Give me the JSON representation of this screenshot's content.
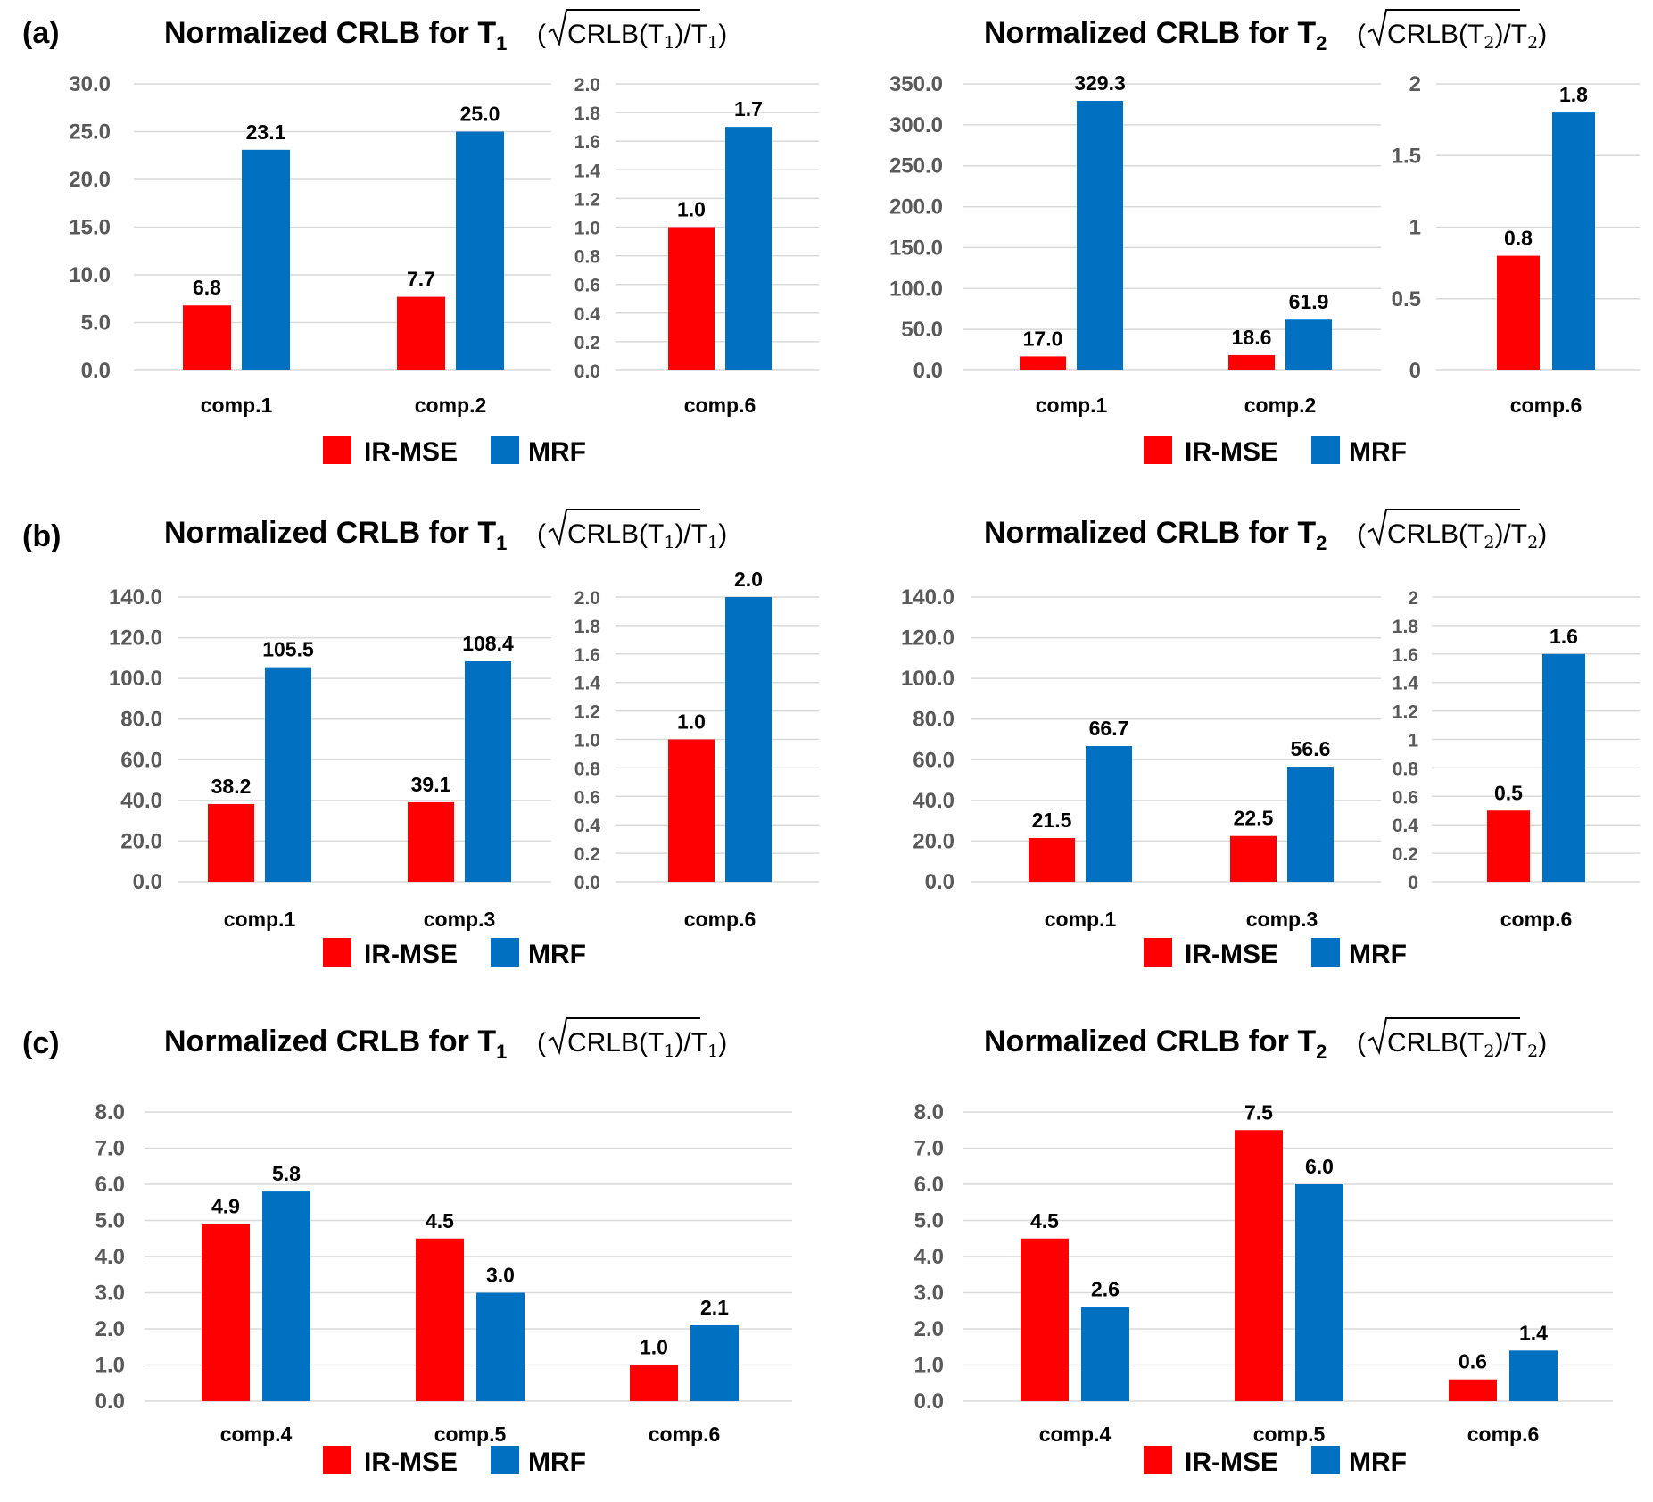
{
  "colors": {
    "ir_mse": "#ff0000",
    "mrf": "#0070c0",
    "grid": "#d9d9d9",
    "tick_text": "#595959"
  },
  "legend": {
    "ir_mse": "IR-MSE",
    "mrf": "MRF"
  },
  "titles": {
    "t1": {
      "main": "Normalized CRLB for T",
      "sub": "1",
      "formula": "CRLB(T",
      "formula_sub": "1",
      "formula_end": "1"
    },
    "t2": {
      "main": "Normalized CRLB for T",
      "sub": "2",
      "formula": "CRLB(T",
      "formula_sub": "2",
      "formula_end": "2"
    }
  },
  "panels": [
    {
      "label": "(a)"
    },
    {
      "label": "(b)"
    },
    {
      "label": "(c)"
    }
  ],
  "chart_data": [
    {
      "type": "bar",
      "panel": "(a)",
      "title": "Normalized CRLB for T1 (√CRLB(T1)/T1)",
      "part": "left",
      "categories": [
        "comp.1",
        "comp.2"
      ],
      "series": [
        {
          "name": "IR-MSE",
          "values": [
            6.8,
            7.7
          ]
        },
        {
          "name": "MRF",
          "values": [
            23.1,
            25.0
          ]
        }
      ],
      "ylim": [
        0,
        30
      ],
      "yticks": [
        "0.0",
        "5.0",
        "10.0",
        "15.0",
        "20.0",
        "25.0",
        "30.0"
      ],
      "grid": true
    },
    {
      "type": "bar",
      "panel": "(a)",
      "title": "Normalized CRLB for T1 (√CRLB(T1)/T1)",
      "part": "right",
      "categories": [
        "comp.6"
      ],
      "series": [
        {
          "name": "IR-MSE",
          "values": [
            1.0
          ]
        },
        {
          "name": "MRF",
          "values": [
            1.7
          ]
        }
      ],
      "ylim": [
        0,
        2
      ],
      "yticks": [
        "0.0",
        "0.2",
        "0.4",
        "0.6",
        "0.8",
        "1.0",
        "1.2",
        "1.4",
        "1.6",
        "1.8",
        "2.0"
      ],
      "grid": true
    },
    {
      "type": "bar",
      "panel": "(a)",
      "title": "Normalized CRLB for T2 (√CRLB(T2)/T2)",
      "part": "left",
      "categories": [
        "comp.1",
        "comp.2"
      ],
      "series": [
        {
          "name": "IR-MSE",
          "values": [
            17.0,
            18.6
          ]
        },
        {
          "name": "MRF",
          "values": [
            329.3,
            61.9
          ]
        }
      ],
      "ylim": [
        0,
        350
      ],
      "yticks": [
        "0.0",
        "50.0",
        "100.0",
        "150.0",
        "200.0",
        "250.0",
        "300.0",
        "350.0"
      ],
      "grid": true
    },
    {
      "type": "bar",
      "panel": "(a)",
      "title": "Normalized CRLB for T2 (√CRLB(T2)/T2)",
      "part": "right",
      "categories": [
        "comp.6"
      ],
      "series": [
        {
          "name": "IR-MSE",
          "values": [
            0.8
          ]
        },
        {
          "name": "MRF",
          "values": [
            1.8
          ]
        }
      ],
      "ylim": [
        0,
        2
      ],
      "yticks": [
        "0",
        "0.5",
        "1",
        "1.5",
        "2"
      ],
      "grid": true
    },
    {
      "type": "bar",
      "panel": "(b)",
      "title": "Normalized CRLB for T1 (√CRLB(T1)/T1)",
      "part": "left",
      "categories": [
        "comp.1",
        "comp.3"
      ],
      "series": [
        {
          "name": "IR-MSE",
          "values": [
            38.2,
            39.1
          ]
        },
        {
          "name": "MRF",
          "values": [
            105.5,
            108.4
          ]
        }
      ],
      "ylim": [
        0,
        140
      ],
      "yticks": [
        "0.0",
        "20.0",
        "40.0",
        "60.0",
        "80.0",
        "100.0",
        "120.0",
        "140.0"
      ],
      "grid": true
    },
    {
      "type": "bar",
      "panel": "(b)",
      "title": "Normalized CRLB for T1 (√CRLB(T1)/T1)",
      "part": "right",
      "categories": [
        "comp.6"
      ],
      "series": [
        {
          "name": "IR-MSE",
          "values": [
            1.0
          ]
        },
        {
          "name": "MRF",
          "values": [
            2.0
          ]
        }
      ],
      "ylim": [
        0,
        2
      ],
      "yticks": [
        "0.0",
        "0.2",
        "0.4",
        "0.6",
        "0.8",
        "1.0",
        "1.2",
        "1.4",
        "1.6",
        "1.8",
        "2.0"
      ],
      "grid": true
    },
    {
      "type": "bar",
      "panel": "(b)",
      "title": "Normalized CRLB for T2 (√CRLB(T2)/T2)",
      "part": "left",
      "categories": [
        "comp.1",
        "comp.3"
      ],
      "series": [
        {
          "name": "IR-MSE",
          "values": [
            21.5,
            22.5
          ]
        },
        {
          "name": "MRF",
          "values": [
            66.7,
            56.6
          ]
        }
      ],
      "ylim": [
        0,
        140
      ],
      "yticks": [
        "0.0",
        "20.0",
        "40.0",
        "60.0",
        "80.0",
        "100.0",
        "120.0",
        "140.0"
      ],
      "grid": true
    },
    {
      "type": "bar",
      "panel": "(b)",
      "title": "Normalized CRLB for T2 (√CRLB(T2)/T2)",
      "part": "right",
      "categories": [
        "comp.6"
      ],
      "series": [
        {
          "name": "IR-MSE",
          "values": [
            0.5
          ]
        },
        {
          "name": "MRF",
          "values": [
            1.6
          ]
        }
      ],
      "ylim": [
        0,
        2
      ],
      "yticks": [
        "0",
        "0.2",
        "0.4",
        "0.6",
        "0.8",
        "1",
        "1.2",
        "1.4",
        "1.6",
        "1.8",
        "2"
      ],
      "grid": true
    },
    {
      "type": "bar",
      "panel": "(c)",
      "title": "Normalized CRLB for T1 (√CRLB(T1)/T1)",
      "part": "single",
      "categories": [
        "comp.4",
        "comp.5",
        "comp.6"
      ],
      "series": [
        {
          "name": "IR-MSE",
          "values": [
            4.9,
            4.5,
            1.0
          ]
        },
        {
          "name": "MRF",
          "values": [
            5.8,
            3.0,
            2.1
          ]
        }
      ],
      "ylim": [
        0,
        8
      ],
      "yticks": [
        "0.0",
        "1.0",
        "2.0",
        "3.0",
        "4.0",
        "5.0",
        "6.0",
        "7.0",
        "8.0"
      ],
      "grid": true
    },
    {
      "type": "bar",
      "panel": "(c)",
      "title": "Normalized CRLB for T2 (√CRLB(T2)/T2)",
      "part": "single",
      "categories": [
        "comp.4",
        "comp.5",
        "comp.6"
      ],
      "series": [
        {
          "name": "IR-MSE",
          "values": [
            4.5,
            7.5,
            0.6
          ]
        },
        {
          "name": "MRF",
          "values": [
            2.6,
            6.0,
            1.4
          ]
        }
      ],
      "ylim": [
        0,
        8
      ],
      "yticks": [
        "0.0",
        "1.0",
        "2.0",
        "3.0",
        "4.0",
        "5.0",
        "6.0",
        "7.0",
        "8.0"
      ],
      "grid": true
    }
  ]
}
